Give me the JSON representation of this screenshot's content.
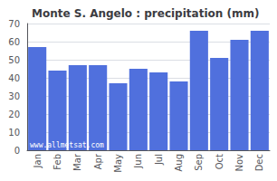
{
  "chart_data": {
    "type": "bar",
    "title": "Monte S. Angelo : precipitation (mm)",
    "categories": [
      "Jan",
      "Feb",
      "Mar",
      "Apr",
      "May",
      "Jun",
      "Jul",
      "Aug",
      "Sep",
      "Oct",
      "Nov",
      "Dec"
    ],
    "values": [
      57,
      44,
      47,
      47,
      37,
      45,
      43,
      38,
      66,
      51,
      61,
      66
    ],
    "ylim": [
      0,
      70
    ],
    "yticks": [
      0,
      10,
      20,
      30,
      40,
      50,
      60,
      70
    ],
    "grid": true,
    "annotation": "www.allmetsat.com"
  }
}
